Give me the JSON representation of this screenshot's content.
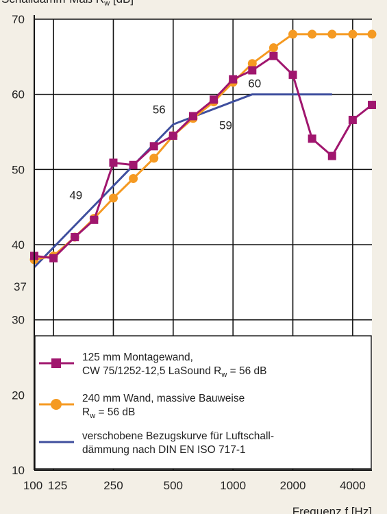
{
  "chart_data": {
    "type": "line",
    "ylabel_main": "Schalldämm-Maß R",
    "ylabel_sub": "w",
    "ylabel_unit": " [dB]",
    "xlabel": "Frequenz f [Hz]",
    "x_scale": "log",
    "xlim": [
      100,
      5000
    ],
    "ylim": [
      10,
      70
    ],
    "y_ticks": [
      70,
      60,
      50,
      40,
      30,
      20,
      10
    ],
    "x_ticks": [
      {
        "label": "100",
        "value": 100
      },
      {
        "label": "125",
        "value": 125
      },
      {
        "label": "250",
        "value": 250
      },
      {
        "label": "500",
        "value": 500
      },
      {
        "label": "1000",
        "value": 1000
      },
      {
        "label": "2000",
        "value": 2000
      },
      {
        "label": "4000",
        "value": 4000
      }
    ],
    "grid_x": [
      100,
      125,
      250,
      500,
      1000,
      2000,
      4000
    ],
    "grid_y": [
      30,
      40,
      50,
      60,
      70
    ],
    "legend_placement": "bottom",
    "series": [
      {
        "key": "montagewand",
        "color": "#a0166e",
        "marker": "square",
        "legend_line1": "125 mm Montagewand,",
        "legend_line2_pre": "CW 75/1252-12,5 LaSound R",
        "legend_line2_sub": "w",
        "legend_line2_post": " = 56 dB",
        "x": [
          100,
          125,
          160,
          200,
          250,
          315,
          400,
          500,
          630,
          800,
          1000,
          1250,
          1600,
          2000,
          2500,
          3150,
          4000,
          5000
        ],
        "y": [
          38.5,
          38.2,
          41.0,
          43.3,
          50.9,
          50.6,
          53.1,
          54.5,
          57.1,
          59.3,
          62.0,
          63.2,
          65.1,
          62.6,
          54.1,
          51.8,
          56.6,
          58.6
        ]
      },
      {
        "key": "massiv",
        "color": "#f59a22",
        "marker": "circle",
        "legend_line1": "240 mm Wand, massive Bauweise",
        "legend_line2_pre": "R",
        "legend_line2_sub": "w",
        "legend_line2_post": " = 56 dB",
        "x": [
          100,
          125,
          160,
          200,
          250,
          315,
          400,
          500,
          630,
          800,
          1000,
          1250,
          1600,
          2000,
          2500,
          3150,
          4000,
          5000
        ],
        "y": [
          38.0,
          38.5,
          41.0,
          43.5,
          46.2,
          48.8,
          51.5,
          54.5,
          56.8,
          59.0,
          61.6,
          64.1,
          66.2,
          68.0,
          68.0,
          68.0,
          68.0,
          68.0
        ]
      },
      {
        "key": "bezugskurve",
        "color": "#3f4f9e",
        "marker": "none",
        "legend_line1": "verschobene Bezugskurve für Luftschall-",
        "legend_line2_pre": "dämmung nach DIN EN ISO 717-1",
        "legend_line2_sub": "",
        "legend_line2_post": "",
        "x": [
          100,
          500,
          1250,
          3150
        ],
        "y": [
          37,
          56,
          60,
          60
        ]
      }
    ],
    "annotations": [
      {
        "text": "37",
        "x": 100,
        "y": 37
      },
      {
        "text": "49",
        "x": 200,
        "y": 49
      },
      {
        "text": "56",
        "x": 500,
        "y": 56
      },
      {
        "text": "59",
        "x": 800,
        "y": 59
      },
      {
        "text": "60",
        "x": 1250,
        "y": 60
      }
    ]
  }
}
